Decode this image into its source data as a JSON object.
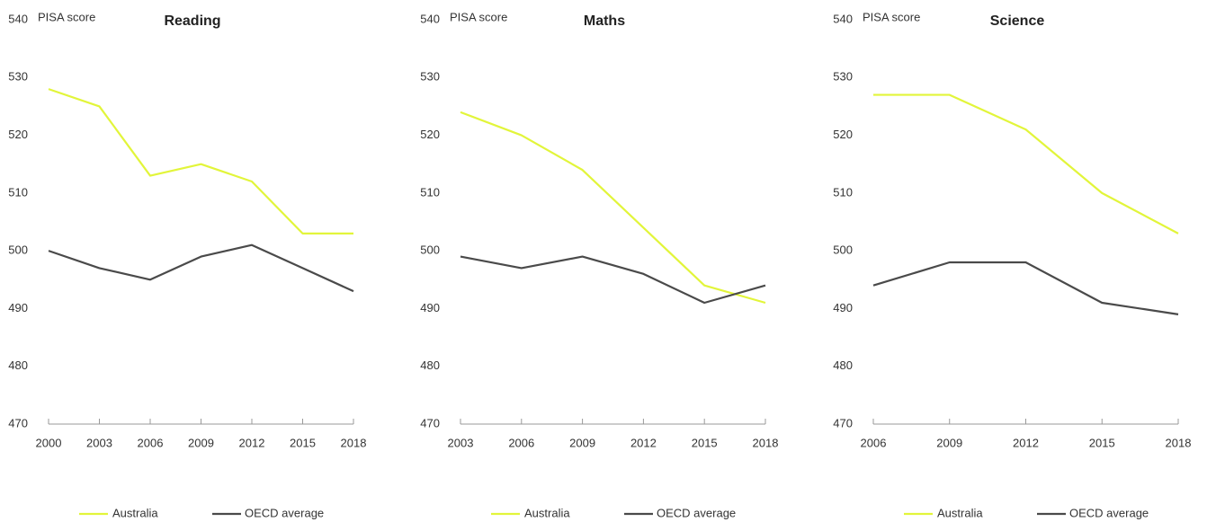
{
  "chart_data": [
    {
      "type": "line",
      "title": "Reading",
      "y_label": "PISA score",
      "x": [
        2000,
        2003,
        2006,
        2009,
        2012,
        2015,
        2018
      ],
      "series": [
        {
          "name": "Australia",
          "color": "#e2f53a",
          "values": [
            528,
            525,
            513,
            515,
            512,
            503,
            503
          ]
        },
        {
          "name": "OECD average",
          "color": "#4a4a4a",
          "values": [
            500,
            497,
            495,
            499,
            501,
            497,
            493
          ]
        }
      ],
      "xlim": [
        2000,
        2018
      ],
      "xticks": [
        2000,
        2003,
        2006,
        2009,
        2012,
        2015,
        2018
      ],
      "ylim": [
        470,
        540
      ],
      "yticks": [
        470,
        480,
        490,
        500,
        510,
        520,
        530,
        540
      ]
    },
    {
      "type": "line",
      "title": "Maths",
      "y_label": "PISA score",
      "x": [
        2003,
        2006,
        2009,
        2012,
        2015,
        2018
      ],
      "series": [
        {
          "name": "Australia",
          "color": "#e2f53a",
          "values": [
            524,
            520,
            514,
            504,
            494,
            491
          ]
        },
        {
          "name": "OECD average",
          "color": "#4a4a4a",
          "values": [
            499,
            497,
            499,
            496,
            491,
            494
          ]
        }
      ],
      "xlim": [
        2003,
        2018
      ],
      "xticks": [
        2003,
        2006,
        2009,
        2012,
        2015,
        2018
      ],
      "ylim": [
        470,
        540
      ],
      "yticks": [
        470,
        480,
        490,
        500,
        510,
        520,
        530,
        540
      ]
    },
    {
      "type": "line",
      "title": "Science",
      "y_label": "PISA score",
      "x": [
        2006,
        2009,
        2012,
        2015,
        2018
      ],
      "series": [
        {
          "name": "Australia",
          "color": "#e2f53a",
          "values": [
            527,
            527,
            521,
            510,
            503
          ]
        },
        {
          "name": "OECD average",
          "color": "#4a4a4a",
          "values": [
            494,
            498,
            498,
            491,
            489
          ]
        }
      ],
      "xlim": [
        2006,
        2018
      ],
      "xticks": [
        2006,
        2009,
        2012,
        2015,
        2018
      ],
      "ylim": [
        470,
        540
      ],
      "yticks": [
        470,
        480,
        490,
        500,
        510,
        520,
        530,
        540
      ]
    }
  ]
}
